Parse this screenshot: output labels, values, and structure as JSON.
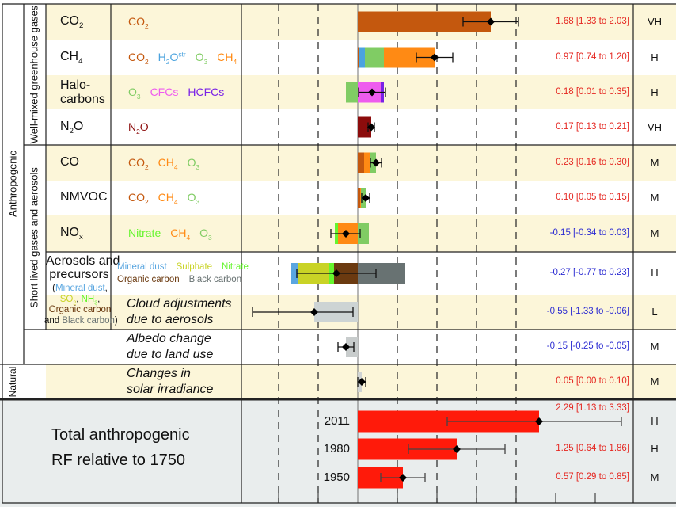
{
  "palette": {
    "co2": "#c4580e",
    "ch4": "#ff8a14",
    "o3": "#80cc64",
    "h2o": "#4ba3de",
    "cfc": "#ee5cee",
    "hcfc": "#7a22e6",
    "n2o": "#8c0c0c",
    "nitrate": "#66f52e",
    "sulphate": "#c9d326",
    "dust": "#5aa6e0",
    "oc": "#6b3a10",
    "bc": "#687272",
    "cloud": "#cdd4d4",
    "albedo": "#c8cccc",
    "solar": "#d0d4d4",
    "total": "#ff1a0a",
    "positive_text": "#e52620",
    "negative_text": "#2c2cd2",
    "black": "#111111",
    "row_cream": "#fcf6d9",
    "total_bg": "#e9eded"
  },
  "labels": {
    "anthropogenic": "Anthropogenic",
    "well_mixed": "Well-mixed greenhouse gases",
    "short_lived": "Short lived gases and aerosols",
    "natural": "Natural",
    "total_line1": "Total anthropogenic",
    "total_line2": "RF relative to 1750"
  },
  "chart_data": {
    "type": "bar",
    "orientation": "horizontal",
    "stacked": true,
    "xlim": [
      -1.5,
      3.5
    ],
    "grid": true,
    "grid_values": [
      -1.0,
      -0.5,
      0.5,
      1.0,
      1.5,
      2.0
    ],
    "rows": [
      {
        "name": [
          {
            "t": "CO"
          },
          {
            "t": "2",
            "sub": true
          }
        ],
        "mechanisms": [
          [
            [
              {
                "t": "CO",
                "c": "co2"
              },
              {
                "t": "2",
                "sub": true,
                "c": "co2"
              }
            ]
          ]
        ],
        "components": [
          {
            "key": "co2",
            "from": 0,
            "to": 1.68
          }
        ],
        "best": 1.68,
        "low": 1.33,
        "high": 2.03,
        "value_text": "1.68 [1.33 to 2.03]",
        "confidence": "VH"
      },
      {
        "name": [
          {
            "t": "CH"
          },
          {
            "t": "4",
            "sub": true
          }
        ],
        "mechanisms": [
          [
            [
              {
                "t": "CO",
                "c": "co2"
              },
              {
                "t": "2",
                "sub": true,
                "c": "co2"
              }
            ],
            [
              {
                "t": "H",
                "c": "h2o"
              },
              {
                "t": "2",
                "sub": true,
                "c": "h2o"
              },
              {
                "t": "O",
                "c": "h2o"
              },
              {
                "t": "str",
                "sup": true,
                "c": "h2o"
              }
            ],
            [
              {
                "t": "O",
                "c": "o3"
              },
              {
                "t": "3",
                "sub": true,
                "c": "o3"
              }
            ],
            [
              {
                "t": "CH",
                "c": "ch4"
              },
              {
                "t": "4",
                "sub": true,
                "c": "ch4"
              }
            ]
          ]
        ],
        "components": [
          {
            "key": "co2",
            "from": 0,
            "to": 0.01
          },
          {
            "key": "h2o",
            "from": 0.01,
            "to": 0.09
          },
          {
            "key": "o3",
            "from": 0.09,
            "to": 0.33
          },
          {
            "key": "ch4",
            "from": 0.33,
            "to": 0.97
          }
        ],
        "best": 0.97,
        "low": 0.74,
        "high": 1.2,
        "value_text": "0.97 [0.74 to 1.20]",
        "confidence": "H"
      },
      {
        "name": [
          {
            "t": "Halo-"
          },
          {
            "br": true
          },
          {
            "t": "carbons"
          }
        ],
        "mechanisms": [
          [
            [
              {
                "t": "O",
                "c": "o3"
              },
              {
                "t": "3",
                "sub": true,
                "c": "o3"
              }
            ],
            [
              {
                "t": "CFCs",
                "c": "cfc"
              }
            ],
            [
              {
                "t": "HCFCs",
                "c": "hcfc"
              }
            ]
          ]
        ],
        "components": [
          {
            "key": "o3",
            "from": -0.15,
            "to": 0
          },
          {
            "key": "cfc",
            "from": 0,
            "to": 0.29
          },
          {
            "key": "hcfc",
            "from": 0.29,
            "to": 0.33
          }
        ],
        "best": 0.18,
        "low": 0.01,
        "high": 0.35,
        "value_text": "0.18 [0.01 to 0.35]",
        "confidence": "H"
      },
      {
        "name": [
          {
            "t": "N"
          },
          {
            "t": "2",
            "sub": true
          },
          {
            "t": "O"
          }
        ],
        "mechanisms": [
          [
            [
              {
                "t": "N",
                "c": "n2o"
              },
              {
                "t": "2",
                "sub": true,
                "c": "n2o"
              },
              {
                "t": "O",
                "c": "n2o"
              }
            ]
          ]
        ],
        "components": [
          {
            "key": "n2o",
            "from": 0,
            "to": 0.17
          }
        ],
        "best": 0.17,
        "low": 0.13,
        "high": 0.21,
        "value_text": "0.17 [0.13 to 0.21]",
        "confidence": "VH"
      },
      {
        "name": [
          {
            "t": "CO"
          }
        ],
        "mechanisms": [
          [
            [
              {
                "t": "CO",
                "c": "co2"
              },
              {
                "t": "2",
                "sub": true,
                "c": "co2"
              }
            ],
            [
              {
                "t": "CH",
                "c": "ch4"
              },
              {
                "t": "4",
                "sub": true,
                "c": "ch4"
              }
            ],
            [
              {
                "t": "O",
                "c": "o3"
              },
              {
                "t": "3",
                "sub": true,
                "c": "o3"
              }
            ]
          ]
        ],
        "components": [
          {
            "key": "co2",
            "from": 0,
            "to": 0.08
          },
          {
            "key": "ch4",
            "from": 0.08,
            "to": 0.16
          },
          {
            "key": "o3",
            "from": 0.16,
            "to": 0.23
          }
        ],
        "best": 0.23,
        "low": 0.16,
        "high": 0.3,
        "value_text": "0.23 [0.16 to 0.30]",
        "confidence": "M"
      },
      {
        "name": [
          {
            "t": "NMVOC"
          }
        ],
        "mechanisms": [
          [
            [
              {
                "t": "CO",
                "c": "co2"
              },
              {
                "t": "2",
                "sub": true,
                "c": "co2"
              }
            ],
            [
              {
                "t": "CH",
                "c": "ch4"
              },
              {
                "t": "4",
                "sub": true,
                "c": "ch4"
              }
            ],
            [
              {
                "t": "O",
                "c": "o3"
              },
              {
                "t": "3",
                "sub": true,
                "c": "o3"
              }
            ]
          ]
        ],
        "components": [
          {
            "key": "co2",
            "from": 0,
            "to": 0.03
          },
          {
            "key": "ch4",
            "from": 0.03,
            "to": 0.04
          },
          {
            "key": "o3",
            "from": 0.04,
            "to": 0.1
          }
        ],
        "best": 0.1,
        "low": 0.05,
        "high": 0.15,
        "value_text": "0.10 [0.05 to 0.15]",
        "confidence": "M"
      },
      {
        "name": [
          {
            "t": "NO"
          },
          {
            "t": "x",
            "sub": true
          }
        ],
        "mechanisms": [
          [
            [
              {
                "t": "Nitrate",
                "c": "nitrate"
              }
            ],
            [
              {
                "t": "CH",
                "c": "ch4"
              },
              {
                "t": "4",
                "sub": true,
                "c": "ch4"
              }
            ],
            [
              {
                "t": "O",
                "c": "o3"
              },
              {
                "t": "3",
                "sub": true,
                "c": "o3"
              }
            ]
          ]
        ],
        "components": [
          {
            "key": "nitrate",
            "from": -0.29,
            "to": -0.25
          },
          {
            "key": "ch4",
            "from": -0.25,
            "to": 0
          },
          {
            "key": "o3",
            "from": 0,
            "to": 0.14
          }
        ],
        "best": -0.15,
        "low": -0.34,
        "high": 0.03,
        "value_text": "-0.15 [-0.34 to 0.03]",
        "confidence": "M"
      },
      {
        "name": [
          {
            "t": "Aerosols and"
          },
          {
            "br": true
          },
          {
            "t": "precursors"
          }
        ],
        "name_sub": [
          [
            {
              "t": "("
            },
            {
              "t": "Mineral dust",
              "c": "dust"
            },
            {
              "t": ","
            }
          ],
          [
            {
              "t": "SO",
              "c": "sulphate"
            },
            {
              "t": "2",
              "sub": true,
              "c": "sulphate"
            },
            {
              "t": ", "
            },
            {
              "t": "NH",
              "c": "nitrate"
            },
            {
              "t": "3",
              "sub": true,
              "c": "nitrate"
            },
            {
              "t": ","
            }
          ],
          [
            {
              "t": "Organic carbon",
              "c": "oc"
            }
          ],
          [
            {
              "t": "and "
            },
            {
              "t": "Black carbon",
              "c": "bc"
            },
            {
              "t": ")"
            }
          ]
        ],
        "mechanisms": [
          [
            [
              {
                "t": "Mineral dust",
                "c": "dust"
              }
            ],
            [
              {
                "t": "Sulphate",
                "c": "sulphate"
              }
            ],
            [
              {
                "t": "Nitrate",
                "c": "nitrate"
              }
            ]
          ],
          [
            [
              {
                "t": "Organic carbon",
                "c": "oc"
              }
            ],
            [
              {
                "t": "Black carbon",
                "c": "bc"
              }
            ]
          ]
        ],
        "components": [
          {
            "key": "dust",
            "from": -0.85,
            "to": -0.76
          },
          {
            "key": "sulphate",
            "from": -0.76,
            "to": -0.36
          },
          {
            "key": "nitrate",
            "from": -0.36,
            "to": -0.3
          },
          {
            "key": "oc",
            "from": -0.3,
            "to": 0
          },
          {
            "key": "bc",
            "from": 0,
            "to": 0.6
          }
        ],
        "best": -0.27,
        "low": -0.77,
        "high": 0.23,
        "value_text": "-0.27 [-0.77 to 0.23]",
        "confidence": "H"
      },
      {
        "italic_label": [
          "Cloud adjustments",
          "due to aerosols"
        ],
        "components": [
          {
            "key": "cloud",
            "from": -0.55,
            "to": 0
          }
        ],
        "best": -0.55,
        "low": -1.33,
        "high": -0.06,
        "value_text": "-0.55 [-1.33 to -0.06]",
        "confidence": "L"
      },
      {
        "italic_label": [
          "Albedo change",
          "due to land use"
        ],
        "components": [
          {
            "key": "albedo",
            "from": -0.15,
            "to": 0
          }
        ],
        "best": -0.15,
        "low": -0.25,
        "high": -0.05,
        "value_text": "-0.15 [-0.25 to -0.05]",
        "confidence": "M"
      },
      {
        "italic_label": [
          "Changes in",
          "solar irradiance"
        ],
        "components": [
          {
            "key": "solar",
            "from": 0,
            "to": 0.05
          }
        ],
        "best": 0.05,
        "low": 0.0,
        "high": 0.1,
        "value_text": "0.05 [0.00 to 0.10]",
        "confidence": "M"
      }
    ],
    "totals": [
      {
        "year": "2011",
        "best": 2.29,
        "low": 1.13,
        "high": 3.33,
        "value_text": "2.29 [1.13 to 3.33]",
        "confidence": "H"
      },
      {
        "year": "1980",
        "best": 1.25,
        "low": 0.64,
        "high": 1.86,
        "value_text": "1.25 [0.64 to 1.86]",
        "confidence": "H"
      },
      {
        "year": "1950",
        "best": 0.57,
        "low": 0.29,
        "high": 0.85,
        "value_text": "0.57 [0.29 to 0.85]",
        "confidence": "M"
      }
    ]
  }
}
